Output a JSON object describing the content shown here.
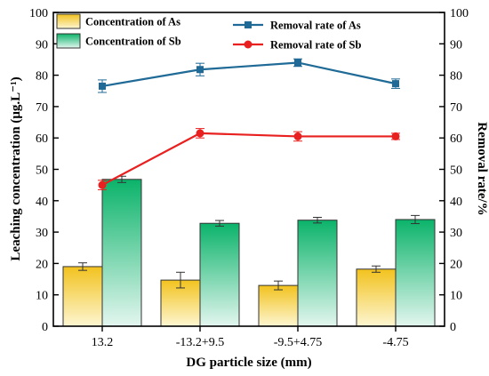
{
  "chart_data": {
    "type": "bar",
    "categories": [
      "13.2",
      "-13.2+9.5",
      "-9.5+4.75",
      "-4.75"
    ],
    "xlabel": "DG particle size (mm)",
    "ylabel": "Leaching concentration (μg.L⁻¹)",
    "ylabel_right": "Removal rate/%",
    "ylim": [
      0,
      100
    ],
    "ylim_right": [
      0,
      100
    ],
    "yticks": [
      0,
      10,
      20,
      30,
      40,
      50,
      60,
      70,
      80,
      90,
      100
    ],
    "grid": false,
    "legend_position": "top",
    "bar_series": [
      {
        "name": "Concentration of As",
        "values": [
          19.0,
          14.7,
          13.0,
          18.2
        ],
        "errors": [
          1.2,
          2.5,
          1.4,
          1.0
        ],
        "color_top": "#f2c21e",
        "color_bottom": "#fdf6d2"
      },
      {
        "name": "Concentration of Sb",
        "values": [
          46.8,
          32.8,
          33.8,
          34.0
        ],
        "errors": [
          1.0,
          0.9,
          0.9,
          1.3
        ],
        "color_top": "#0bb36a",
        "color_bottom": "#e3f6ef"
      }
    ],
    "line_series": [
      {
        "name": "Removal rate of As",
        "axis": "right",
        "marker": "square",
        "color": "#1f6a96",
        "values": [
          76.5,
          81.8,
          84.0,
          77.3
        ],
        "errors": [
          2.0,
          2.0,
          1.2,
          1.5
        ]
      },
      {
        "name": "Removal rate of Sb",
        "axis": "right",
        "marker": "circle",
        "color": "#e8201f",
        "values": [
          45.0,
          61.5,
          60.5,
          60.5
        ],
        "errors": [
          1.5,
          1.5,
          1.5,
          1.0
        ]
      }
    ]
  }
}
